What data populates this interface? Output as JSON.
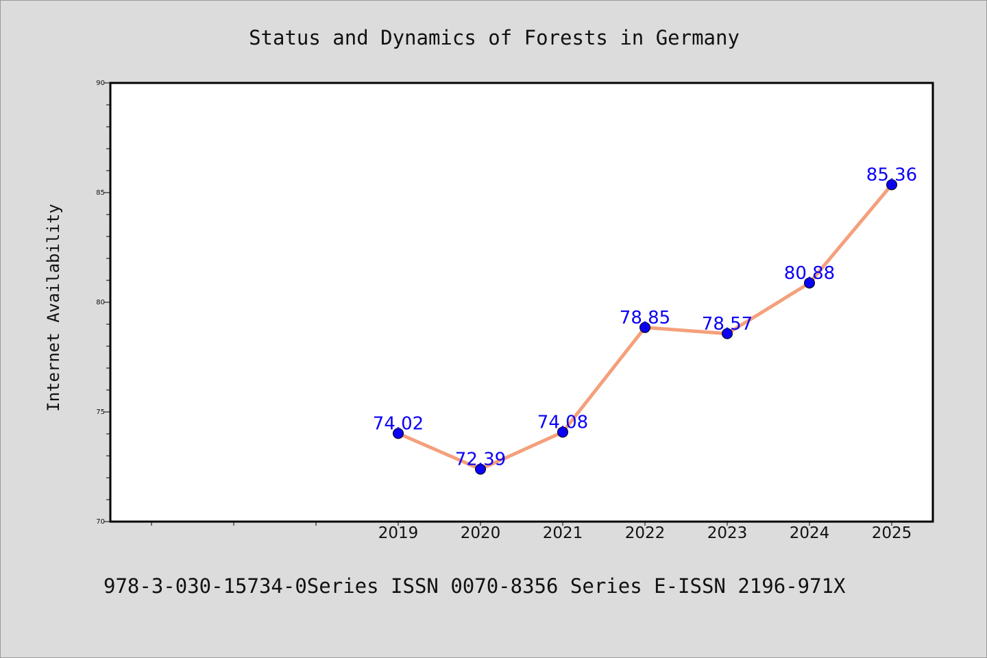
{
  "chart_data": {
    "type": "line",
    "title": "Status and Dynamics of Forests in Germany",
    "xlabel": "",
    "ylabel": "Internet Availability",
    "categories": [
      "2019",
      "2020",
      "2021",
      "2022",
      "2023",
      "2024",
      "2025"
    ],
    "values": [
      74.02,
      72.39,
      74.08,
      78.85,
      78.57,
      80.88,
      85.36
    ],
    "data_labels": [
      "74.02",
      "72.39",
      "74.08",
      "78.85",
      "78.57",
      "80.88",
      "85.36"
    ],
    "ylim": [
      70,
      90
    ],
    "yticks": [
      70,
      75,
      80,
      85,
      90
    ],
    "x_slots_before_first_category": 3,
    "grid": false,
    "legend": "none",
    "line_color": "#f4a07c",
    "marker_color": "#0a00f5",
    "label_color": "#0a00f5"
  },
  "footer": {
    "text": "978-3-030-15734-0Series ISSN 0070-8356 Series E-ISSN 2196-971X"
  }
}
